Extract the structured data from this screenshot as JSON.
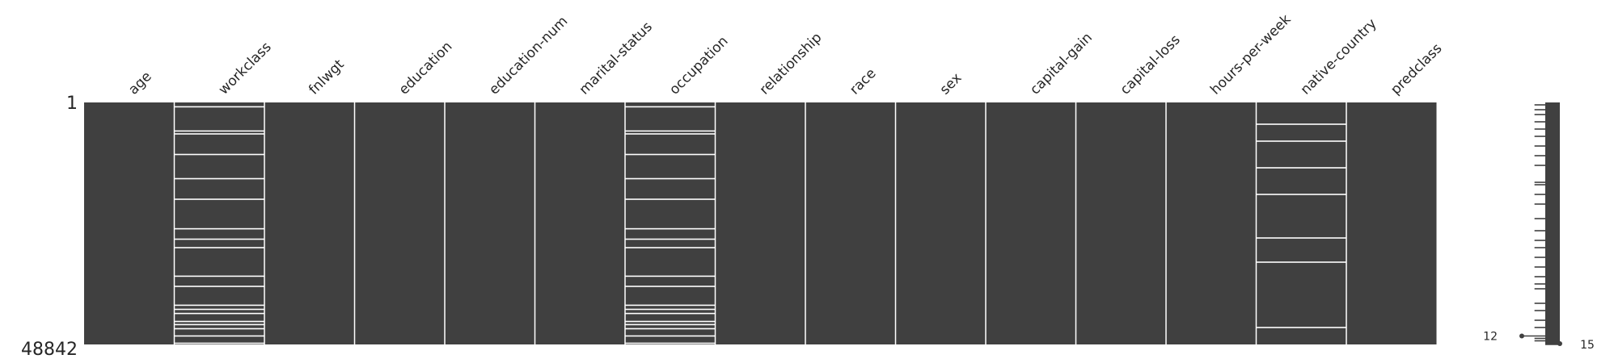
{
  "chart_data": {
    "type": "heatmap",
    "subtype": "missingness-matrix",
    "title": "",
    "xlabel": "",
    "ylabel": "",
    "total_rows": 48842,
    "row_labels": {
      "first": "1",
      "last": "48842"
    },
    "columns": [
      {
        "name": "age",
        "missing_row_fractions": []
      },
      {
        "name": "workclass",
        "missing_row_fractions": [
          0.018,
          0.118,
          0.13,
          0.215,
          0.315,
          0.4,
          0.522,
          0.565,
          0.6,
          0.718,
          0.76,
          0.838,
          0.855,
          0.872,
          0.905,
          0.918,
          0.935,
          0.965,
          0.995
        ]
      },
      {
        "name": "fnlwgt",
        "missing_row_fractions": []
      },
      {
        "name": "education",
        "missing_row_fractions": []
      },
      {
        "name": "education-num",
        "missing_row_fractions": []
      },
      {
        "name": "marital-status",
        "missing_row_fractions": []
      },
      {
        "name": "occupation",
        "missing_row_fractions": [
          0.018,
          0.118,
          0.13,
          0.215,
          0.315,
          0.4,
          0.522,
          0.565,
          0.6,
          0.718,
          0.76,
          0.838,
          0.855,
          0.872,
          0.905,
          0.918,
          0.935,
          0.965,
          0.995
        ]
      },
      {
        "name": "relationship",
        "missing_row_fractions": []
      },
      {
        "name": "race",
        "missing_row_fractions": []
      },
      {
        "name": "sex",
        "missing_row_fractions": []
      },
      {
        "name": "capital-gain",
        "missing_row_fractions": []
      },
      {
        "name": "capital-loss",
        "missing_row_fractions": []
      },
      {
        "name": "hours-per-week",
        "missing_row_fractions": []
      },
      {
        "name": "native-country",
        "missing_row_fractions": [
          0.09,
          0.16,
          0.27,
          0.38,
          0.56,
          0.66,
          0.93
        ]
      },
      {
        "name": "predclass",
        "missing_row_fractions": []
      }
    ],
    "sparkline": {
      "min_label": "12",
      "max_label": "15",
      "min_value": 12,
      "max_value": 15,
      "completeness_rows": [
        {
          "f": 0.01,
          "v": 13
        },
        {
          "f": 0.03,
          "v": 13
        },
        {
          "f": 0.05,
          "v": 13
        },
        {
          "f": 0.08,
          "v": 13
        },
        {
          "f": 0.11,
          "v": 13
        },
        {
          "f": 0.14,
          "v": 13
        },
        {
          "f": 0.18,
          "v": 13
        },
        {
          "f": 0.22,
          "v": 13
        },
        {
          "f": 0.26,
          "v": 13
        },
        {
          "f": 0.33,
          "v": 13
        },
        {
          "f": 0.34,
          "v": 13
        },
        {
          "f": 0.38,
          "v": 13
        },
        {
          "f": 0.42,
          "v": 13
        },
        {
          "f": 0.48,
          "v": 13
        },
        {
          "f": 0.53,
          "v": 13
        },
        {
          "f": 0.57,
          "v": 13
        },
        {
          "f": 0.6,
          "v": 13
        },
        {
          "f": 0.64,
          "v": 13
        },
        {
          "f": 0.68,
          "v": 13
        },
        {
          "f": 0.72,
          "v": 13
        },
        {
          "f": 0.75,
          "v": 13
        },
        {
          "f": 0.77,
          "v": 13
        },
        {
          "f": 0.83,
          "v": 13
        },
        {
          "f": 0.86,
          "v": 13
        },
        {
          "f": 0.9,
          "v": 13
        },
        {
          "f": 0.93,
          "v": 13
        },
        {
          "f": 0.965,
          "v": 12
        },
        {
          "f": 0.975,
          "v": 13
        },
        {
          "f": 0.985,
          "v": 13
        },
        {
          "f": 1.0,
          "v": 15
        }
      ]
    },
    "colors": {
      "present": "#404040",
      "missing": "#ffffff",
      "background": "#ffffff"
    }
  }
}
